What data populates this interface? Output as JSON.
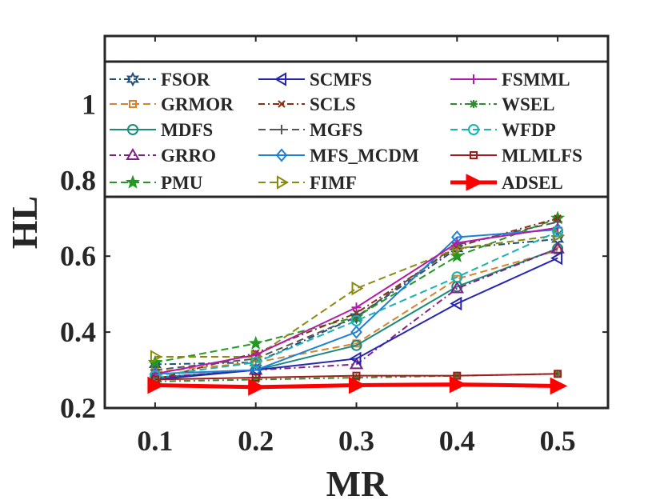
{
  "chart_data": {
    "type": "line",
    "title": "",
    "xlabel": "MR",
    "ylabel": "HL",
    "x": [
      0.1,
      0.2,
      0.3,
      0.4,
      0.5
    ],
    "x_tick_labels": [
      "0.1",
      "0.2",
      "0.3",
      "0.4",
      "0.5"
    ],
    "y_ticks": [
      0.2,
      0.4,
      0.6,
      0.8,
      1
    ],
    "y_tick_labels": [
      "0.2",
      "0.4",
      "0.6",
      "0.8",
      "1"
    ],
    "xlim": [
      0.05,
      0.55
    ],
    "ylim": [
      0.2,
      1.18
    ],
    "grid": false,
    "legend_position": "top",
    "series": [
      {
        "name": "FSOR",
        "color": "#1f4e79",
        "dash": "dashdot",
        "marker": "hexagram",
        "values": [
          0.315,
          0.32,
          0.44,
          0.62,
          0.645
        ]
      },
      {
        "name": "GRMOR",
        "color": "#d9822b",
        "dash": "dash",
        "marker": "square",
        "values": [
          0.295,
          0.32,
          0.37,
          0.54,
          0.615
        ]
      },
      {
        "name": "MDFS",
        "color": "#1a8a7a",
        "dash": "solid",
        "marker": "circle",
        "values": [
          0.28,
          0.3,
          0.365,
          0.52,
          0.62
        ]
      },
      {
        "name": "GRRO",
        "color": "#7e1f86",
        "dash": "dashdot",
        "marker": "triangle-up",
        "values": [
          0.28,
          0.3,
          0.315,
          0.515,
          0.62
        ]
      },
      {
        "name": "PMU",
        "color": "#229922",
        "dash": "dash",
        "marker": "star",
        "values": [
          0.32,
          0.37,
          0.44,
          0.6,
          0.7
        ]
      },
      {
        "name": "SCMFS",
        "color": "#2525b0",
        "dash": "solid",
        "marker": "triangle-left",
        "values": [
          0.275,
          0.3,
          0.33,
          0.475,
          0.595
        ]
      },
      {
        "name": "SCLS",
        "color": "#8b2e0e",
        "dash": "dashdot",
        "marker": "x",
        "values": [
          0.275,
          0.345,
          0.45,
          0.625,
          0.7
        ]
      },
      {
        "name": "MGFS",
        "color": "#555555",
        "dash": "dash",
        "marker": "plus",
        "values": [
          0.3,
          0.33,
          0.44,
          0.63,
          0.69
        ]
      },
      {
        "name": "MFS_MCDM",
        "color": "#1d7fd6",
        "dash": "solid",
        "marker": "diamond",
        "values": [
          0.29,
          0.3,
          0.4,
          0.65,
          0.67
        ]
      },
      {
        "name": "FIMF",
        "color": "#8a8a10",
        "dash": "dash",
        "marker": "triangle-right",
        "values": [
          0.335,
          0.335,
          0.515,
          0.62,
          0.655
        ]
      },
      {
        "name": "FSMML",
        "color": "#b31aa8",
        "dash": "solid",
        "marker": "plus",
        "values": [
          0.29,
          0.34,
          0.465,
          0.635,
          0.675
        ]
      },
      {
        "name": "WSEL",
        "color": "#2e8b2e",
        "dash": "dashdot",
        "marker": "asterisk",
        "values": [
          0.27,
          0.275,
          0.28,
          0.285,
          0.29
        ]
      },
      {
        "name": "WFDP",
        "color": "#17b2b2",
        "dash": "dash",
        "marker": "circle",
        "values": [
          0.285,
          0.32,
          0.43,
          0.545,
          0.665
        ]
      },
      {
        "name": "MLMLFS",
        "color": "#a41a1a",
        "dash": "solid",
        "marker": "square",
        "values": [
          0.275,
          0.28,
          0.285,
          0.285,
          0.29
        ]
      },
      {
        "name": "ADSEL",
        "color": "#ff0000",
        "dash": "solid",
        "marker": "triangle-right",
        "thick": true,
        "values": [
          0.26,
          0.255,
          0.26,
          0.262,
          0.258
        ]
      }
    ]
  }
}
